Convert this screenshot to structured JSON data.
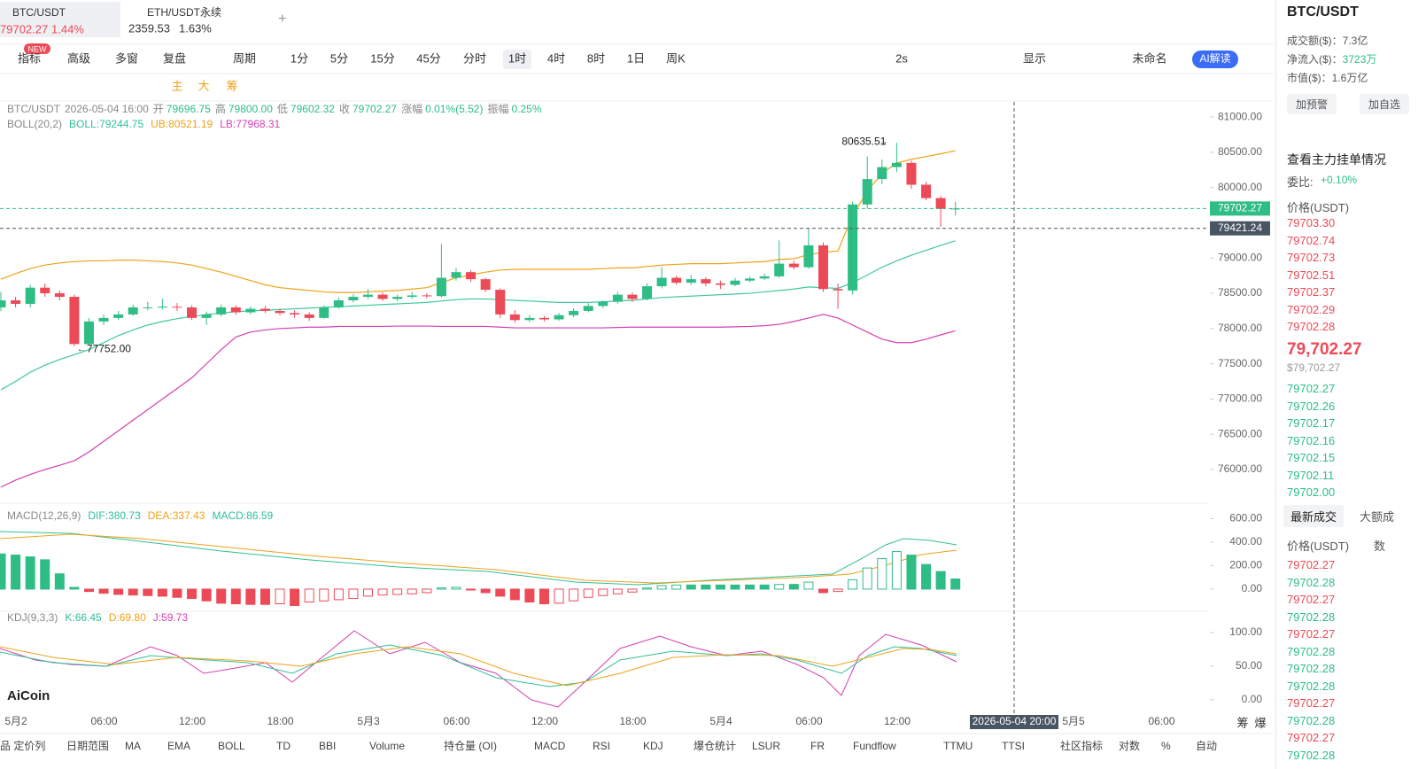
{
  "tabs": [
    {
      "symbol": "BTC/USDT",
      "price": "79702.27",
      "change": "1.44%"
    },
    {
      "symbol": "ETH/USDT永续",
      "price": "2359.53",
      "change": "1.63%"
    }
  ],
  "new_badge": "NEW",
  "toolbar": [
    "指标",
    "高级",
    "多窗",
    "复盘",
    "周期",
    "1分",
    "5分",
    "15分",
    "45分",
    "分时",
    "1时",
    "4时",
    "8时",
    "1日",
    "周K"
  ],
  "toolbar_active": 10,
  "toolbar_right": [
    "2s",
    "显示",
    "未命名",
    "AI解读"
  ],
  "draw_tools": [
    "主",
    "大",
    "筹"
  ],
  "info": {
    "symbol": "BTC/USDT",
    "time": "2026-05-04 16:00",
    "pairs": [
      [
        "开",
        "79696.75"
      ],
      [
        "高",
        "79800.00"
      ],
      [
        "低",
        "79602.32"
      ],
      [
        "收",
        "79702.27"
      ],
      [
        "涨幅",
        "0.01%(5.52)"
      ],
      [
        "振幅",
        "0.25%"
      ]
    ]
  },
  "indicators": [
    {
      "name": "BOLL(20,2)",
      "items": [
        "BOLL:79244.75",
        "UB:80521.19",
        "LB:77968.31"
      ],
      "colors": [
        "#2fbf9a",
        "#f0a21a",
        "#d33fb2"
      ]
    },
    {
      "name": "MACD(12,26,9)",
      "items": [
        "DIF:380.73",
        "DEA:337.43",
        "MACD:86.59"
      ],
      "colors": [
        "#2fbf9a",
        "#f0a21a",
        "#2fbf9a"
      ]
    },
    {
      "name": "KDJ(9,3,3)",
      "items": [
        "K:66.45",
        "D:69.80",
        "J:59.73"
      ],
      "colors": [
        "#2fbf9a",
        "#f0a21a",
        "#d33fb2"
      ]
    }
  ],
  "logo": "AiCoin",
  "time_labels": [
    "5月2",
    "06:00",
    "12:00",
    "18:00",
    "5月3",
    "06:00",
    "12:00",
    "18:00",
    "5月4",
    "06:00",
    "12:00",
    "5月5",
    "06:00"
  ],
  "axis_extra": [
    "筹",
    "爆"
  ],
  "bottom_tabs": [
    "品 定价列",
    "日期范围",
    "MA",
    "EMA",
    "BOLL",
    "TD",
    "BBI",
    "Volume",
    "持仓量 (OI)",
    "MACD",
    "RSI",
    "KDJ",
    "爆仓统计",
    "LSUR",
    "FR",
    "Fundflow",
    "TTMU",
    "TTSI",
    "社区指标",
    "对数",
    "%",
    "自动"
  ],
  "chart_data": {
    "type": "candlestick",
    "ylim": [
      75560,
      81215
    ],
    "yticks": [
      {
        "value": 81000,
        "label": "81000.00"
      },
      {
        "value": 80500,
        "label": "80500.00"
      },
      {
        "value": 80000,
        "label": "80000.00"
      },
      {
        "value": 79000,
        "label": "79000.00"
      },
      {
        "value": 78500,
        "label": "78500.00"
      },
      {
        "value": 78000,
        "label": "78000.00"
      },
      {
        "value": 77500,
        "label": "77500.00"
      },
      {
        "value": 77000,
        "label": "77000.00"
      },
      {
        "value": 76500,
        "label": "76500.00"
      },
      {
        "value": 76000,
        "label": "76000.00"
      }
    ],
    "up_color": "#2ebd85",
    "down_color": "#ec4a57",
    "ohlc": [
      [
        78300,
        78520,
        78250,
        78400
      ],
      [
        78400,
        78450,
        78300,
        78350
      ],
      [
        78350,
        78620,
        78300,
        78580
      ],
      [
        78580,
        78640,
        78450,
        78500
      ],
      [
        78500,
        78540,
        78400,
        78450
      ],
      [
        78450,
        78480,
        77752,
        77780
      ],
      [
        77780,
        78150,
        77760,
        78100
      ],
      [
        78100,
        78200,
        78050,
        78150
      ],
      [
        78150,
        78250,
        78120,
        78200
      ],
      [
        78200,
        78340,
        78180,
        78300
      ],
      [
        78300,
        78380,
        78260,
        78300
      ],
      [
        78300,
        78420,
        78270,
        78310
      ],
      [
        78310,
        78360,
        78250,
        78300
      ],
      [
        78300,
        78330,
        78120,
        78150
      ],
      [
        78150,
        78240,
        78050,
        78200
      ],
      [
        78200,
        78340,
        78170,
        78300
      ],
      [
        78300,
        78330,
        78200,
        78230
      ],
      [
        78230,
        78310,
        78200,
        78280
      ],
      [
        78280,
        78320,
        78220,
        78250
      ],
      [
        78250,
        78280,
        78190,
        78220
      ],
      [
        78220,
        78260,
        78150,
        78200
      ],
      [
        78200,
        78230,
        78110,
        78150
      ],
      [
        78150,
        78330,
        78140,
        78300
      ],
      [
        78300,
        78440,
        78280,
        78400
      ],
      [
        78400,
        78490,
        78370,
        78450
      ],
      [
        78450,
        78560,
        78420,
        78480
      ],
      [
        78480,
        78510,
        78390,
        78420
      ],
      [
        78420,
        78480,
        78390,
        78450
      ],
      [
        78450,
        78520,
        78420,
        78470
      ],
      [
        78470,
        78500,
        78430,
        78460
      ],
      [
        78460,
        79200,
        78440,
        78720
      ],
      [
        78720,
        78860,
        78680,
        78800
      ],
      [
        78800,
        78830,
        78660,
        78700
      ],
      [
        78700,
        78720,
        78520,
        78550
      ],
      [
        78550,
        78570,
        78150,
        78200
      ],
      [
        78200,
        78260,
        78080,
        78120
      ],
      [
        78120,
        78190,
        78090,
        78150
      ],
      [
        78150,
        78180,
        78100,
        78130
      ],
      [
        78130,
        78220,
        78110,
        78190
      ],
      [
        78190,
        78290,
        78160,
        78250
      ],
      [
        78250,
        78360,
        78230,
        78320
      ],
      [
        78320,
        78400,
        78290,
        78380
      ],
      [
        78380,
        78520,
        78350,
        78480
      ],
      [
        78480,
        78510,
        78380,
        78420
      ],
      [
        78420,
        78640,
        78400,
        78600
      ],
      [
        78600,
        78870,
        78570,
        78720
      ],
      [
        78720,
        78750,
        78620,
        78650
      ],
      [
        78650,
        78760,
        78620,
        78700
      ],
      [
        78700,
        78730,
        78600,
        78640
      ],
      [
        78640,
        78680,
        78560,
        78620
      ],
      [
        78620,
        78720,
        78600,
        78680
      ],
      [
        78680,
        78740,
        78660,
        78710
      ],
      [
        78710,
        78780,
        78690,
        78740
      ],
      [
        78740,
        79250,
        78720,
        78920
      ],
      [
        78920,
        78960,
        78840,
        78870
      ],
      [
        78870,
        79420,
        78850,
        79180
      ],
      [
        79180,
        79220,
        78520,
        78560
      ],
      [
        78560,
        78640,
        78280,
        78540
      ],
      [
        78540,
        79800,
        78480,
        79760
      ],
      [
        79760,
        80440,
        79700,
        80120
      ],
      [
        80120,
        80400,
        80050,
        80290
      ],
      [
        80290,
        80635.51,
        80220,
        80350
      ],
      [
        80350,
        80380,
        79980,
        80040
      ],
      [
        80040,
        80080,
        79820,
        79850
      ],
      [
        79850,
        79880,
        79440,
        79696.75
      ],
      [
        79696.75,
        79800,
        79602.32,
        79702.27
      ]
    ],
    "boll": [
      {
        "name": "UB",
        "color": "#f0a21a",
        "values": [
          78700,
          78780,
          78850,
          78900,
          78930,
          78950,
          78960,
          78960,
          78970,
          78970,
          78960,
          78950,
          78930,
          78900,
          78850,
          78800,
          78740,
          78680,
          78620,
          78580,
          78560,
          78540,
          78520,
          78510,
          78510,
          78520,
          78530,
          78540,
          78560,
          78580,
          78650,
          78720,
          78760,
          78800,
          78830,
          78840,
          78840,
          78840,
          78840,
          78840,
          78840,
          78850,
          78860,
          78860,
          78880,
          78900,
          78910,
          78920,
          78920,
          78920,
          78930,
          78940,
          78950,
          78980,
          78990,
          79050,
          79080,
          79100,
          79600,
          79950,
          80200,
          80350,
          80400,
          80440,
          80480,
          80521.19
        ]
      },
      {
        "name": "BOLL",
        "color": "#3ec7a0",
        "values": [
          77130,
          77250,
          77380,
          77480,
          77560,
          77630,
          77700,
          77800,
          77900,
          77980,
          78050,
          78100,
          78140,
          78170,
          78200,
          78220,
          78240,
          78250,
          78260,
          78270,
          78280,
          78290,
          78300,
          78310,
          78320,
          78330,
          78340,
          78350,
          78360,
          78370,
          78390,
          78410,
          78420,
          78420,
          78410,
          78400,
          78390,
          78380,
          78370,
          78370,
          78370,
          78380,
          78390,
          78400,
          78420,
          78440,
          78450,
          78460,
          78470,
          78480,
          78490,
          78500,
          78520,
          78540,
          78560,
          78590,
          78580,
          78570,
          78650,
          78760,
          78870,
          78960,
          79040,
          79110,
          79180,
          79244.75
        ]
      },
      {
        "name": "LB",
        "color": "#d33fb2",
        "values": [
          75750,
          75850,
          75930,
          76000,
          76060,
          76125,
          76250,
          76400,
          76550,
          76700,
          76850,
          77000,
          77150,
          77300,
          77500,
          77700,
          77880,
          77950,
          77980,
          78000,
          78010,
          78020,
          78020,
          78030,
          78030,
          78030,
          78030,
          78035,
          78035,
          78035,
          78030,
          78030,
          78030,
          78030,
          78020,
          78010,
          78010,
          78010,
          78010,
          78010,
          78010,
          78010,
          78015,
          78020,
          78020,
          78020,
          78020,
          78020,
          78020,
          78020,
          78025,
          78030,
          78040,
          78060,
          78100,
          78150,
          78200,
          78150,
          78050,
          77950,
          77850,
          77800,
          77800,
          77850,
          77910,
          77968.31
        ]
      }
    ],
    "annotations": [
      {
        "text": "80635.51",
        "index": 61
      },
      {
        "text": "77752.00",
        "index": 5
      }
    ],
    "last_price": 79702.27,
    "crosshair_price": 79421.24,
    "crosshair_time": "2026-05-04 20:00",
    "macd": {
      "ylim": [
        -189,
        717
      ],
      "yticks": [
        {
          "value": 600,
          "label": "600.00"
        },
        {
          "value": 400,
          "label": "400.00"
        },
        {
          "value": 200,
          "label": "200.00"
        },
        {
          "value": 0,
          "label": "0.00"
        }
      ],
      "values": [
        300,
        290,
        275,
        250,
        130,
        15,
        -20,
        -35,
        -45,
        -50,
        -55,
        -60,
        -70,
        -80,
        -100,
        -120,
        -125,
        -130,
        -130,
        -125,
        -140,
        -110,
        -100,
        -90,
        -80,
        -60,
        -50,
        -45,
        -40,
        -30,
        10,
        15,
        -5,
        -30,
        -60,
        -90,
        -110,
        -125,
        -120,
        -100,
        -70,
        -55,
        -40,
        -25,
        10,
        30,
        35,
        35,
        35,
        35,
        35,
        35,
        35,
        40,
        40,
        60,
        -30,
        -20,
        80,
        180,
        260,
        320,
        290,
        210,
        150,
        86.59
      ]
    },
    "kdj": {
      "ylim": [
        -20,
        125
      ],
      "yticks": [
        {
          "value": 100,
          "label": "100.00"
        },
        {
          "value": 50,
          "label": "50.00"
        },
        {
          "value": 0,
          "label": "0.00"
        }
      ]
    }
  },
  "side": {
    "symbol": "BTC/USDT",
    "stats": [
      [
        "成交额($)：",
        "7.3亿"
      ],
      [
        "净流入($)：",
        "3723万"
      ],
      [
        "市值($)：",
        "1.6万亿"
      ]
    ],
    "buttons": [
      "加预警",
      "加自选"
    ],
    "depth_title": "查看主力挂单情况",
    "ratio_label": "委比:",
    "ratio": "+0.10%",
    "price_head": "价格(USDT)",
    "asks": [
      "79703.30",
      "79702.74",
      "79702.73",
      "79702.51",
      "79702.37",
      "79702.29",
      "79702.28"
    ],
    "last": "79,702.27",
    "last_usd": "$79,702.27",
    "bids": [
      "79702.27",
      "79702.26",
      "79702.17",
      "79702.16",
      "79702.15",
      "79702.11",
      "79702.00"
    ],
    "trade_tabs": [
      "最新成交",
      "大额成"
    ],
    "trade_head": [
      "价格(USDT)",
      "数"
    ],
    "trades": [
      [
        "79702.27",
        "sell"
      ],
      [
        "79702.28",
        "buy"
      ],
      [
        "79702.27",
        "sell"
      ],
      [
        "79702.28",
        "buy"
      ],
      [
        "79702.27",
        "sell"
      ],
      [
        "79702.28",
        "buy"
      ],
      [
        "79702.28",
        "buy"
      ],
      [
        "79702.28",
        "buy"
      ],
      [
        "79702.27",
        "sell"
      ],
      [
        "79702.28",
        "buy"
      ],
      [
        "79702.27",
        "sell"
      ],
      [
        "79702.28",
        "buy"
      ]
    ]
  }
}
